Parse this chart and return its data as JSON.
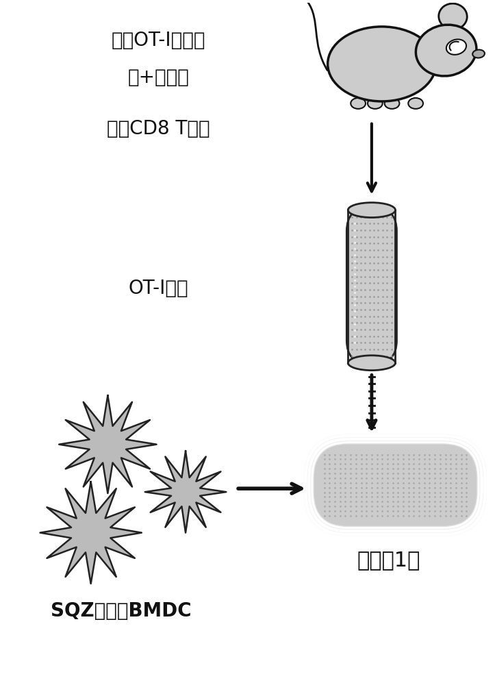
{
  "bg_color": "#ffffff",
  "text1": "来自OT-I小鼠的",
  "text2": "脾+淋巴结",
  "text3": "纯化CD8 T细胞",
  "text4": "OT-I细胞",
  "text5": "共培养1天",
  "text6": "SQZ处理的BMDC",
  "font_size_main": 20,
  "font_size_label": 18,
  "arrow_color": "#111111"
}
